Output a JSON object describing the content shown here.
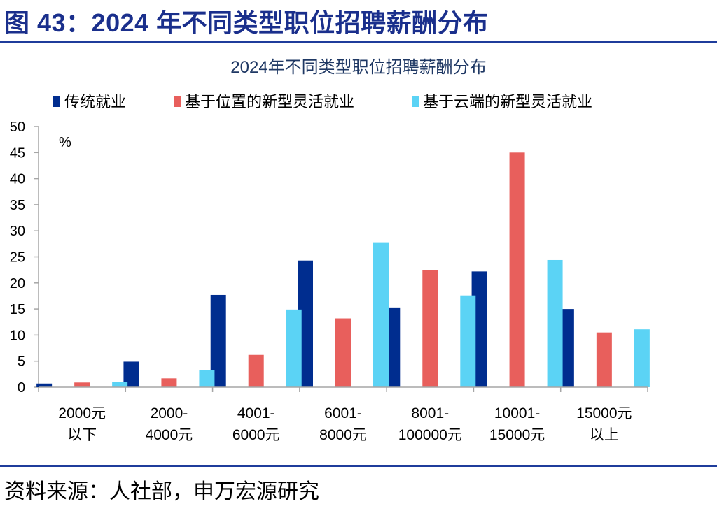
{
  "figure_title": "图 43：2024 年不同类型职位招聘薪酬分布",
  "source": "资料来源：人社部，申万宏源研究",
  "colors": {
    "rule": "#1f3c9b",
    "title": "#1a2f8c",
    "axis": "#a6a6a6",
    "chart_title": "#1f3864"
  },
  "chart_data": {
    "type": "bar",
    "title": "2024年不同类型职位招聘薪酬分布",
    "unit_label": "%",
    "categories": [
      [
        "2000元",
        "以下"
      ],
      [
        "2000-",
        "4000元"
      ],
      [
        "4001-",
        "6000元"
      ],
      [
        "6001-",
        "8000元"
      ],
      [
        "8001-",
        "100000元"
      ],
      [
        "10001-",
        "15000元"
      ],
      [
        "15000元",
        "以上"
      ]
    ],
    "series": [
      {
        "name": "传统就业",
        "color": "#002d8f",
        "values": [
          0.7,
          4.9,
          17.7,
          24.3,
          15.3,
          22.2,
          15.0
        ]
      },
      {
        "name": "基于位置的新型灵活就业",
        "color": "#e85f5c",
        "values": [
          0.9,
          1.7,
          6.2,
          13.2,
          22.5,
          45.0,
          10.5
        ]
      },
      {
        "name": "基于云端的新型灵活就业",
        "color": "#5bd3f5",
        "values": [
          1.0,
          3.3,
          14.9,
          27.8,
          17.6,
          24.4,
          11.1
        ]
      }
    ],
    "ylim": [
      0,
      50
    ],
    "yticks": [
      0,
      5,
      10,
      15,
      20,
      25,
      30,
      35,
      40,
      45,
      50
    ],
    "legend_position": "top",
    "grid": false
  }
}
